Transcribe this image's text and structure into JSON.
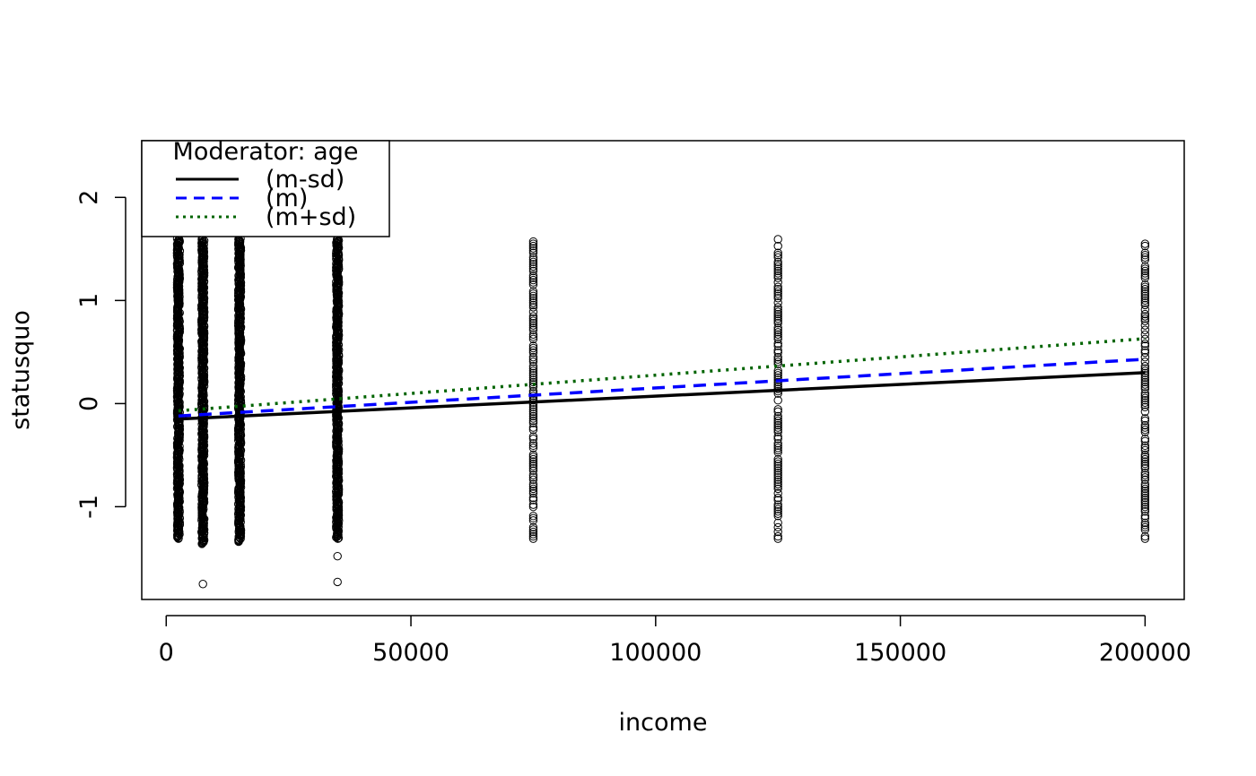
{
  "chart_data": {
    "type": "scatter",
    "title": "",
    "xlabel": "income",
    "ylabel": "statusquo",
    "xlim": [
      -5000,
      208000
    ],
    "ylim": [
      -1.9,
      2.55
    ],
    "x_ticks": [
      0,
      50000,
      100000,
      150000,
      200000
    ],
    "x_tick_labels": [
      "0",
      "50000",
      "100000",
      "150000",
      "200000"
    ],
    "y_ticks": [
      -1,
      0,
      1,
      2
    ],
    "y_tick_labels": [
      "-1",
      "0",
      "1",
      "2"
    ],
    "grid": false,
    "legend": {
      "placement": "top-left",
      "title": "Moderator: age",
      "entries": [
        "(m-sd)",
        "(m)",
        "(m+sd)"
      ]
    },
    "point_groups": [
      {
        "x": 2500,
        "y_min": -1.31,
        "y_max": 1.6
      },
      {
        "x": 7500,
        "y_min": -1.36,
        "y_max": 1.6,
        "extra_y": [
          -1.75
        ]
      },
      {
        "x": 15000,
        "y_min": -1.34,
        "y_max": 1.6
      },
      {
        "x": 35000,
        "y_min": -1.31,
        "y_max": 1.6,
        "extra_y": [
          -1.48,
          -1.73
        ]
      },
      {
        "x": 75000,
        "y_min": -1.31,
        "y_max": 1.6
      },
      {
        "x": 125000,
        "y_min": -1.31,
        "y_max": 1.6
      },
      {
        "x": 200000,
        "y_min": -1.31,
        "y_max": 1.6
      }
    ],
    "series": [
      {
        "name": "(m-sd)",
        "color": "#000000",
        "dash": "solid",
        "x": [
          2500,
          200000
        ],
        "y": [
          -0.15,
          0.3
        ]
      },
      {
        "name": "(m)",
        "color": "#0000ff",
        "dash": "dashed",
        "x": [
          2500,
          200000
        ],
        "y": [
          -0.12,
          0.43
        ]
      },
      {
        "name": "(m+sd)",
        "color": "#006400",
        "dash": "dotted",
        "x": [
          2500,
          200000
        ],
        "y": [
          -0.07,
          0.63
        ]
      }
    ]
  }
}
